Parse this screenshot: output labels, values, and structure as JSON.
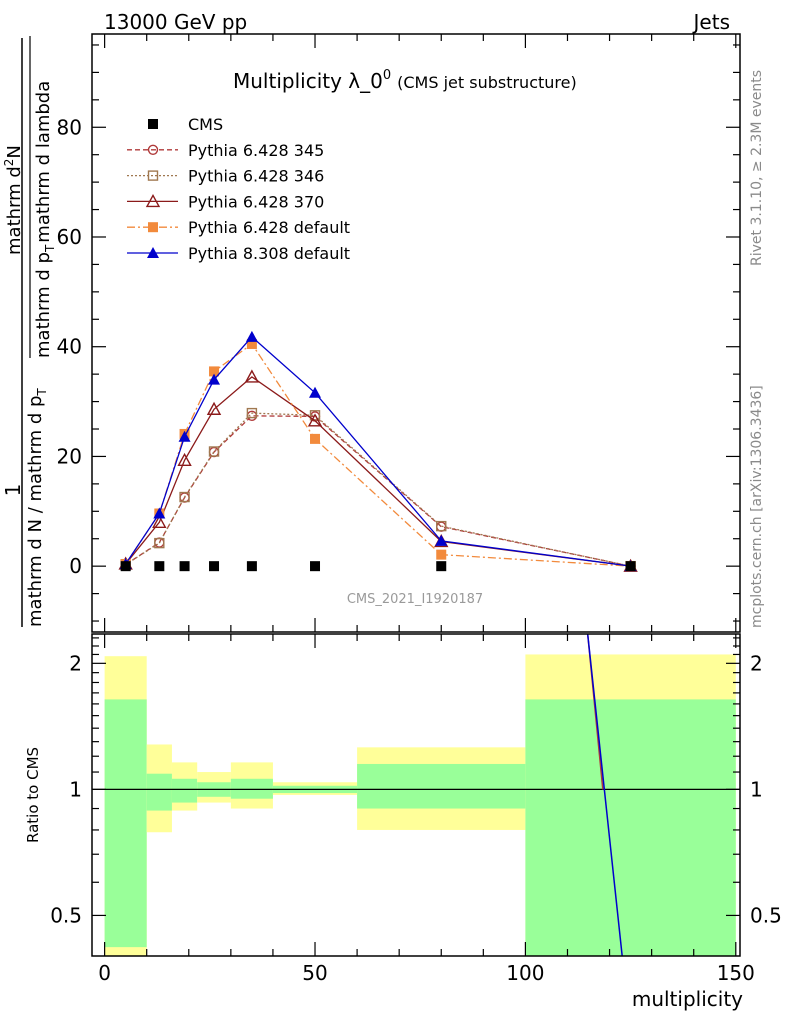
{
  "header": {
    "left": "13000 GeV pp",
    "right": "Jets"
  },
  "side_labels": {
    "rivet": "Rivet 3.1.10, ≥ 2.3M events",
    "mcplots": "mcplots.cern.ch [arXiv:1306.3436]"
  },
  "watermark": "CMS_2021_I1920187",
  "chart_data": [
    {
      "type": "line",
      "title_main": "Multiplicity λ_0",
      "title_sup": "0",
      "title_sub": "(CMS jet substructure)",
      "ylabel": {
        "numerator": "1",
        "denominator": "mathrm d N / mathrm d p",
        "denominator_sub": "T",
        "frac2_num": "mathrm d",
        "frac2_num_sup": "2",
        "frac2_num_end": "N",
        "frac2_den": "mathrm d p",
        "frac2_den_sub": "T",
        "frac2_den_end": "mathrm d lambda"
      },
      "xlim": [
        -3,
        151
      ],
      "ylim": [
        -12,
        97
      ],
      "yticks": [
        0,
        20,
        40,
        60,
        80
      ],
      "xticks": [
        0,
        50,
        100,
        150
      ],
      "legend_position": "top-left",
      "series": [
        {
          "name": "CMS",
          "color": "#000000",
          "marker": "filled-square",
          "line": "none",
          "x": [
            5,
            13,
            19,
            26,
            35,
            50,
            80,
            125
          ],
          "y": [
            0,
            0,
            0,
            0,
            0,
            0,
            0,
            0
          ]
        },
        {
          "name": "Pythia 6.428 345",
          "color": "#b03a3a",
          "marker": "open-circle",
          "line": "dashed",
          "x": [
            5,
            13,
            19,
            26,
            35,
            50,
            80,
            125
          ],
          "y": [
            0.3,
            4.3,
            12.5,
            20.8,
            27.4,
            27.3,
            7.2,
            0.0
          ]
        },
        {
          "name": "Pythia 6.428 346",
          "color": "#a07850",
          "marker": "open-square",
          "line": "dotted",
          "x": [
            5,
            13,
            19,
            26,
            35,
            50,
            80,
            125
          ],
          "y": [
            0.3,
            4.2,
            12.6,
            20.9,
            27.9,
            27.5,
            7.3,
            0.0
          ]
        },
        {
          "name": "Pythia 6.428 370",
          "color": "#8b1a1a",
          "marker": "open-triangle",
          "line": "solid",
          "x": [
            5,
            13,
            19,
            26,
            35,
            50,
            80,
            125
          ],
          "y": [
            0.4,
            8.0,
            19.3,
            28.6,
            34.5,
            26.5,
            4.5,
            0.0
          ]
        },
        {
          "name": "Pythia 6.428 default",
          "color": "#f28a3c",
          "marker": "filled-square",
          "line": "dashdot",
          "x": [
            5,
            13,
            19,
            26,
            35,
            50,
            80,
            125
          ],
          "y": [
            0.4,
            9.6,
            24.1,
            35.5,
            40.5,
            23.2,
            2.1,
            0.0
          ]
        },
        {
          "name": "Pythia 8.308 default",
          "color": "#0000cc",
          "marker": "filled-triangle",
          "line": "solid",
          "x": [
            5,
            13,
            19,
            26,
            35,
            50,
            80,
            125
          ],
          "y": [
            0.4,
            9.6,
            23.6,
            34.0,
            41.8,
            31.6,
            4.6,
            0.0
          ]
        }
      ]
    },
    {
      "type": "area",
      "ylabel": "Ratio to CMS",
      "xlabel": "multiplicity",
      "scale": "log",
      "ylim": [
        0.4,
        2.35
      ],
      "yticks": [
        0.5,
        1,
        2
      ],
      "xlim": [
        -3,
        151
      ],
      "xticks": [
        0,
        50,
        100,
        150
      ],
      "reference_line": 1,
      "bins": [
        {
          "x0": 0,
          "x1": 10,
          "green": [
            0.42,
            1.64
          ],
          "yellow": [
            0.37,
            2.08
          ]
        },
        {
          "x0": 10,
          "x1": 16,
          "green": [
            0.89,
            1.09
          ],
          "yellow": [
            0.79,
            1.28
          ]
        },
        {
          "x0": 16,
          "x1": 22,
          "green": [
            0.93,
            1.06
          ],
          "yellow": [
            0.89,
            1.16
          ]
        },
        {
          "x0": 22,
          "x1": 30,
          "green": [
            0.96,
            1.04
          ],
          "yellow": [
            0.93,
            1.1
          ]
        },
        {
          "x0": 30,
          "x1": 40,
          "green": [
            0.95,
            1.06
          ],
          "yellow": [
            0.9,
            1.16
          ]
        },
        {
          "x0": 40,
          "x1": 60,
          "green": [
            0.98,
            1.02
          ],
          "yellow": [
            0.97,
            1.04
          ]
        },
        {
          "x0": 60,
          "x1": 100,
          "green": [
            0.9,
            1.15
          ],
          "yellow": [
            0.8,
            1.26
          ]
        },
        {
          "x0": 100,
          "x1": 150,
          "green": [
            0.37,
            1.64
          ],
          "yellow": [
            0.37,
            2.1
          ]
        }
      ],
      "colors": {
        "green": "#99ff99",
        "yellow": "#ffff99"
      },
      "ratio_lines": [
        {
          "color": "#b03a3a",
          "x": [
            114.8,
            118.4
          ],
          "y": [
            2.35,
            1.0
          ]
        },
        {
          "color": "#0000cc",
          "x": [
            114.8,
            123.0
          ],
          "y": [
            2.35,
            0.4
          ]
        }
      ]
    }
  ]
}
